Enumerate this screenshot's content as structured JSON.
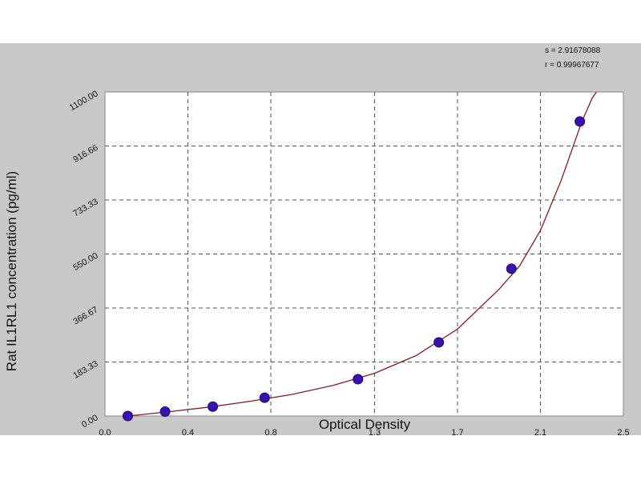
{
  "chart_data": {
    "type": "scatter",
    "xlabel": "Optical Density",
    "ylabel": "Rat IL1RL1 concentration (pg/ml)",
    "xlim": [
      0.0,
      2.5
    ],
    "ylim": [
      0.0,
      1100.0
    ],
    "x_ticks": [
      0.0,
      0.4,
      0.8,
      1.3,
      1.7,
      2.1,
      2.5
    ],
    "x_tick_labels": [
      "0.0",
      "0.4",
      "0.8",
      "1.3",
      "1.7",
      "2.1",
      "2.5"
    ],
    "y_ticks": [
      0.0,
      183.33,
      366.67,
      550.0,
      733.33,
      916.66,
      1100.0
    ],
    "y_tick_labels": [
      "0.00",
      "183.33",
      "366.67",
      "550.00",
      "733.33",
      "916.66",
      "1100.00"
    ],
    "grid": true,
    "stats": [
      "s = 2.91678088",
      "r = 0.99967677"
    ],
    "series": [
      {
        "x": [
          0.11,
          0.29,
          0.52,
          0.77,
          1.22,
          1.61,
          1.96,
          2.29
        ],
        "y": [
          0,
          15,
          32,
          62,
          125,
          250,
          500,
          1000
        ],
        "marker_color": "#3a10b0"
      }
    ],
    "fit_curve": {
      "color": "#8b1a1a",
      "x": [
        0.11,
        0.3,
        0.5,
        0.7,
        0.9,
        1.1,
        1.3,
        1.5,
        1.7,
        1.9,
        2.0,
        2.1,
        2.2,
        2.3,
        2.35,
        2.37
      ],
      "y": [
        0,
        14,
        30,
        50,
        73,
        104,
        145,
        205,
        295,
        430,
        510,
        630,
        800,
        1000,
        1080,
        1100
      ]
    }
  }
}
